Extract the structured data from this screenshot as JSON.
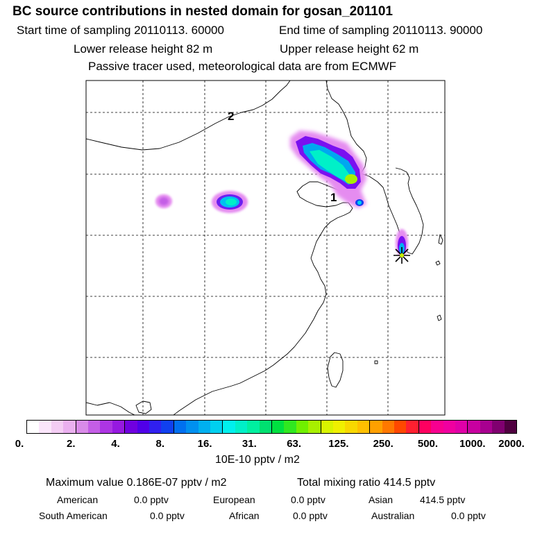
{
  "header": {
    "title": "BC  source contributions in nested domain for gosan_201101",
    "start_time": "Start time of sampling 20110113. 60000",
    "end_time": "End time of sampling 20110113. 90000",
    "lower_release": "Lower release height   82 m",
    "upper_release": "Upper release height   62 m",
    "tracer_note": "Passive tracer used, meteorological data are from ECMWF"
  },
  "map": {
    "markers": [
      {
        "label": "1"
      },
      {
        "label": "2"
      }
    ]
  },
  "colorbar": {
    "tick_labels": [
      "0.",
      "2.",
      "4.",
      "8.",
      "16.",
      "31.",
      "63.",
      "125.",
      "250.",
      "500.",
      "1000.",
      "2000."
    ],
    "segments": [
      [
        "#ffffff",
        "#fbe6fb",
        "#f4cdf4",
        "#eab0ef"
      ],
      [
        "#d98be8",
        "#c45ee6",
        "#ad35e3",
        "#9619e0"
      ],
      [
        "#7000e0",
        "#5000e8",
        "#3020f0",
        "#1040f0"
      ],
      [
        "#0070f0",
        "#0090f0",
        "#00b0f0",
        "#00d0f0"
      ],
      [
        "#00f0ee",
        "#00f0c8",
        "#00f0a0",
        "#00e070"
      ],
      [
        "#00e040",
        "#30e820",
        "#70f000",
        "#a8f000"
      ],
      [
        "#d8f400",
        "#f0f000",
        "#f8d800",
        "#ffc000"
      ],
      [
        "#ffa000",
        "#ff7800",
        "#ff4800",
        "#ff2030"
      ],
      [
        "#ff0060",
        "#f80090",
        "#f000a0",
        "#e000a8"
      ],
      [
        "#c800a0",
        "#a80090",
        "#800070",
        "#500040"
      ]
    ],
    "unit_label": "10E-10 pptv / m2"
  },
  "stats": {
    "max_value": "Maximum value  0.186E-07 pptv / m2",
    "total_mixing": "Total mixing ratio      414.5 pptv",
    "regions": [
      {
        "name": "American",
        "value": "0.0 pptv"
      },
      {
        "name": "European",
        "value": "0.0 pptv"
      },
      {
        "name": "Asian",
        "value": "414.5 pptv"
      },
      {
        "name": "South American",
        "value": "0.0 pptv"
      },
      {
        "name": "African",
        "value": "0.0 pptv"
      },
      {
        "name": "Australian",
        "value": "0.0 pptv"
      }
    ]
  },
  "colors": {
    "plume_outer": "#e58cf0",
    "plume_mid": "#7a10f0",
    "plume_core": "#00f0c8",
    "plume_hot": "#c8f000",
    "receptor": "#000000"
  }
}
